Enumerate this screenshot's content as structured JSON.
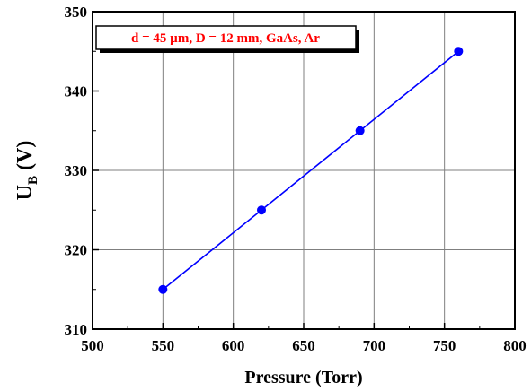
{
  "chart_data": {
    "type": "line",
    "x": [
      550,
      620,
      690,
      760
    ],
    "series": [
      {
        "values": [
          315,
          325,
          335,
          345
        ],
        "color": "#0000ff"
      }
    ],
    "xlabel": "Pressure (Torr)",
    "ylabel": {
      "main": "U",
      "sub": "B",
      "unit": " (V)"
    },
    "xlim": [
      500,
      800
    ],
    "ylim": [
      310,
      350
    ],
    "xticks": [
      "500",
      "550",
      "600",
      "650",
      "700",
      "750",
      "800"
    ],
    "yticks": [
      "310",
      "320",
      "330",
      "340",
      "350"
    ],
    "grid": true,
    "annotation": "d = 45 µm, D = 12 mm, GaAs, Ar",
    "annotation_color": "#ff0000",
    "marker": "circle"
  }
}
